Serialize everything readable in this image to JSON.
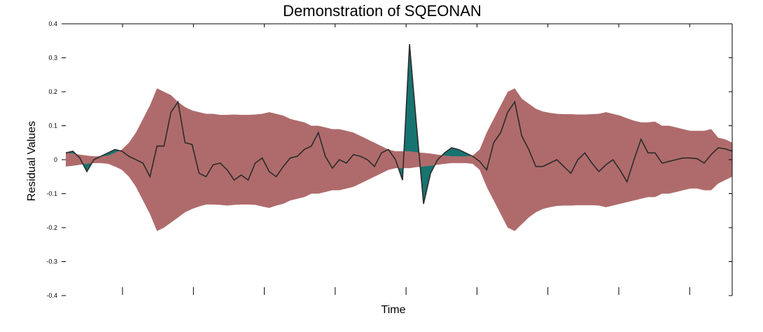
{
  "chart_data": {
    "type": "area",
    "title": "Demonstration of SQEONAN",
    "xlabel": "Time",
    "ylabel": "Residual Values",
    "ylim": [
      -0.4,
      0.4
    ],
    "yticks": [
      "0.4",
      "0.3",
      "0.2",
      "0.1",
      "0",
      "-0.1",
      "-0.2",
      "-0.3",
      "-0.4"
    ],
    "ytick_values": [
      0.4,
      0.3,
      0.2,
      0.1,
      0,
      -0.1,
      -0.2,
      -0.3,
      -0.4
    ],
    "xlim": [
      0,
      95
    ],
    "x_ticks_labeled": false,
    "grid": false,
    "colors": {
      "band": "#af6b6b",
      "excess": "#177470",
      "line": "#2b2b2b"
    },
    "series": [
      {
        "kind": "residual",
        "values": [
          0.02,
          0.025,
          0.005,
          -0.035,
          0.0,
          0.01,
          0.02,
          0.03,
          0.025,
          0.01,
          0.0,
          -0.01,
          -0.05,
          0.04,
          0.04,
          0.14,
          0.17,
          0.05,
          0.045,
          -0.04,
          -0.05,
          -0.015,
          -0.01,
          -0.03,
          -0.06,
          -0.045,
          -0.06,
          -0.01,
          0.005,
          -0.035,
          -0.05,
          -0.02,
          0.005,
          0.01,
          0.03,
          0.04,
          0.08,
          0.01,
          -0.025,
          0.0,
          -0.01,
          0.015,
          0.01,
          0.0,
          -0.02,
          0.02,
          0.03,
          0.0,
          -0.06,
          0.34,
          0.1,
          -0.13,
          -0.04,
          0.0,
          0.02,
          0.035,
          0.03,
          0.02,
          0.01,
          -0.005,
          -0.03,
          0.05,
          0.08,
          0.14,
          0.17,
          0.07,
          0.03,
          -0.02,
          -0.02,
          -0.01,
          0.0,
          -0.02,
          -0.04,
          0.0,
          0.02,
          -0.01,
          -0.035,
          -0.015,
          0.0,
          -0.03,
          -0.065,
          0.0,
          0.06,
          0.02,
          0.02,
          -0.01,
          -0.005,
          0.0,
          0.005,
          0.005,
          0.003,
          -0.01,
          0.015,
          0.035,
          0.032,
          0.025
        ]
      },
      {
        "kind": "band_upper",
        "values": [
          0.02,
          0.018,
          0.015,
          0.012,
          0.01,
          0.01,
          0.012,
          0.02,
          0.03,
          0.05,
          0.08,
          0.12,
          0.16,
          0.21,
          0.2,
          0.19,
          0.17,
          0.155,
          0.145,
          0.14,
          0.135,
          0.135,
          0.132,
          0.132,
          0.133,
          0.132,
          0.132,
          0.133,
          0.135,
          0.14,
          0.135,
          0.13,
          0.12,
          0.115,
          0.11,
          0.1,
          0.1,
          0.095,
          0.09,
          0.09,
          0.085,
          0.08,
          0.07,
          0.06,
          0.05,
          0.04,
          0.03,
          0.025,
          0.025,
          0.025,
          0.022,
          0.02,
          0.018,
          0.015,
          0.012,
          0.01,
          0.01,
          0.01,
          0.012,
          0.03,
          0.08,
          0.12,
          0.16,
          0.2,
          0.21,
          0.18,
          0.165,
          0.15,
          0.142,
          0.138,
          0.135,
          0.134,
          0.134,
          0.133,
          0.133,
          0.134,
          0.135,
          0.14,
          0.135,
          0.13,
          0.122,
          0.115,
          0.11,
          0.11,
          0.112,
          0.1,
          0.1,
          0.095,
          0.09,
          0.085,
          0.085,
          0.085,
          0.09,
          0.065,
          0.06,
          0.05
        ]
      },
      {
        "kind": "band_lower",
        "values": [
          -0.02,
          -0.018,
          -0.015,
          -0.012,
          -0.01,
          -0.01,
          -0.012,
          -0.02,
          -0.03,
          -0.05,
          -0.08,
          -0.12,
          -0.16,
          -0.21,
          -0.2,
          -0.185,
          -0.17,
          -0.155,
          -0.145,
          -0.138,
          -0.132,
          -0.132,
          -0.133,
          -0.135,
          -0.133,
          -0.132,
          -0.132,
          -0.133,
          -0.138,
          -0.142,
          -0.135,
          -0.13,
          -0.12,
          -0.115,
          -0.11,
          -0.1,
          -0.1,
          -0.095,
          -0.09,
          -0.09,
          -0.085,
          -0.08,
          -0.07,
          -0.06,
          -0.05,
          -0.04,
          -0.03,
          -0.025,
          -0.025,
          -0.025,
          -0.022,
          -0.02,
          -0.018,
          -0.015,
          -0.012,
          -0.01,
          -0.01,
          -0.01,
          -0.012,
          -0.03,
          -0.08,
          -0.12,
          -0.16,
          -0.2,
          -0.21,
          -0.19,
          -0.17,
          -0.155,
          -0.145,
          -0.14,
          -0.136,
          -0.135,
          -0.135,
          -0.134,
          -0.134,
          -0.134,
          -0.135,
          -0.14,
          -0.135,
          -0.13,
          -0.125,
          -0.12,
          -0.115,
          -0.11,
          -0.11,
          -0.1,
          -0.1,
          -0.095,
          -0.09,
          -0.085,
          -0.085,
          -0.09,
          -0.09,
          -0.07,
          -0.06,
          -0.05
        ]
      }
    ]
  }
}
